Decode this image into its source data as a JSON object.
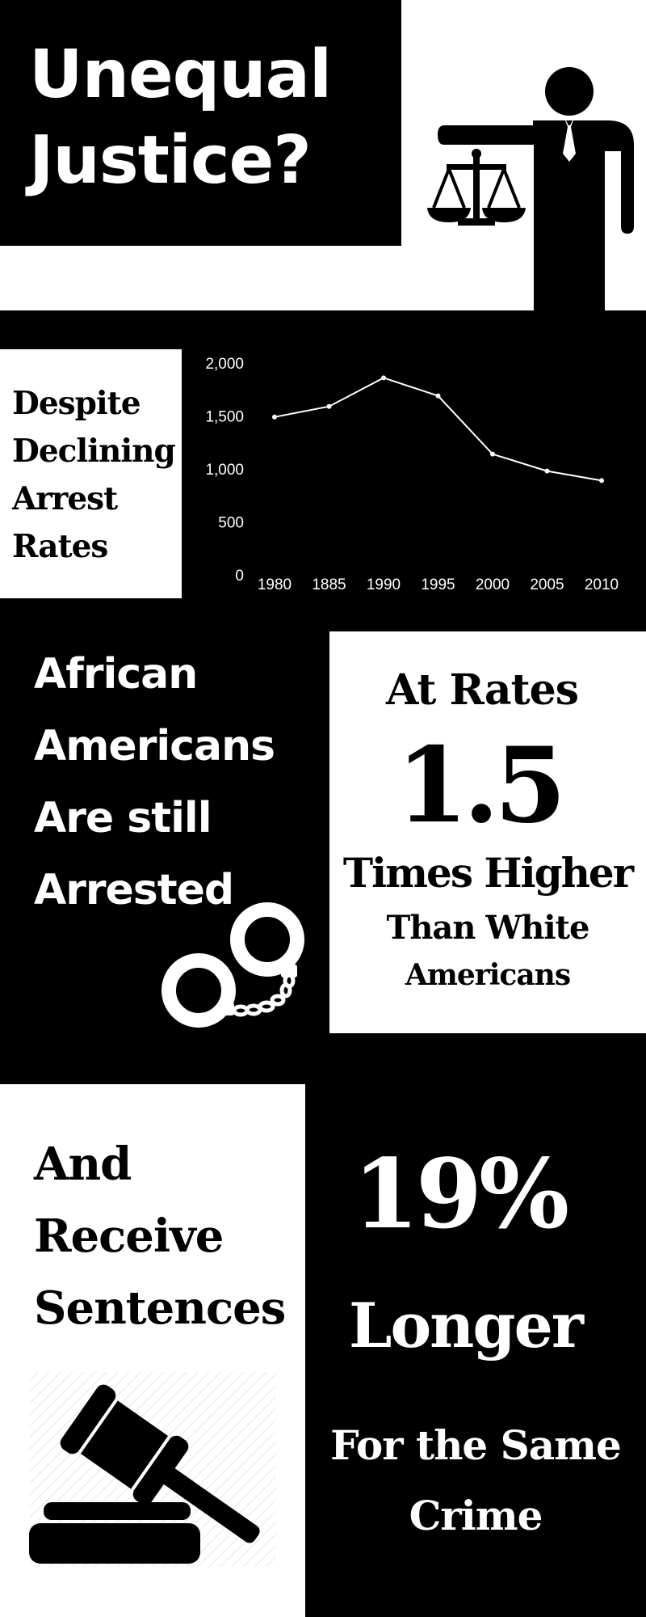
{
  "title": {
    "line1": "Unequal",
    "line2": "Justice?"
  },
  "section_decline": {
    "lines": [
      "Despite",
      "Declining",
      "Arrest",
      "Rates"
    ]
  },
  "chart_data": {
    "type": "line",
    "categories": [
      "1980",
      "1885",
      "1990",
      "1995",
      "2000",
      "2005",
      "2010"
    ],
    "values": [
      1490,
      1590,
      1860,
      1690,
      1140,
      980,
      890
    ],
    "yticks": [
      "2,000",
      "1,500",
      "1,000",
      "500",
      "0"
    ],
    "ylim": [
      0,
      2000
    ],
    "grid": false,
    "title": "",
    "xlabel": "",
    "ylabel": "",
    "colors": {
      "line": "#ffffff"
    }
  },
  "section_arrested": {
    "lines": [
      "African",
      "Americans",
      "Are still",
      "Arrested"
    ]
  },
  "section_rates": {
    "heading": "At Rates",
    "number": "1.5",
    "line1": "Times Higher",
    "line2": "Than White",
    "line3": "Americans"
  },
  "section_sentences": {
    "lines": [
      "And",
      "Receive",
      "Sentences"
    ]
  },
  "section_longer": {
    "percent": "19%",
    "word": "Longer",
    "line1": "For the Same",
    "line2": "Crime"
  },
  "icons": {
    "justice": "justice-figure-icon",
    "handcuffs": "handcuffs-icon",
    "gavel": "gavel-icon"
  },
  "colors": {
    "primary": "#000000",
    "secondary": "#ffffff"
  }
}
